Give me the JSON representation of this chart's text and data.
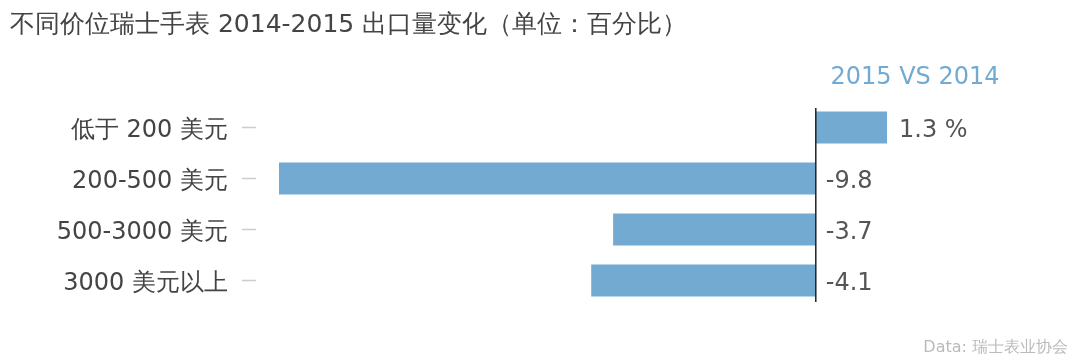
{
  "chart_data": {
    "type": "bar",
    "orientation": "horizontal",
    "title": "不同价位瑞士手表 2014-2015 出口量变化（单位：百分比）",
    "categories": [
      "低于 200 美元",
      "200-500 美元",
      "500-3000 美元",
      "3000 美元以上"
    ],
    "series": [
      {
        "name": "2015 VS 2014",
        "color": "#72aad2",
        "values": [
          1.3,
          -9.8,
          -3.7,
          -4.1
        ],
        "value_labels": [
          "1.3 %",
          "-9.8",
          "-3.7",
          "-4.1"
        ]
      }
    ],
    "legend": "top right",
    "annotations": [
      "Data: 瑞士表业协会"
    ]
  }
}
